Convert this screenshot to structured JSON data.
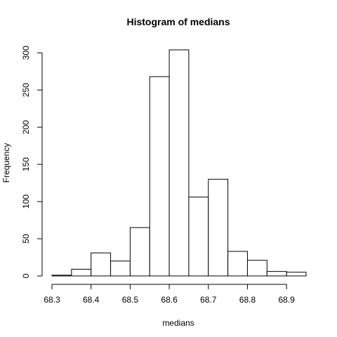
{
  "chart_data": {
    "type": "histogram",
    "title": "Histogram of medians",
    "xlabel": "medians",
    "ylabel": "Frequency",
    "bins": [
      {
        "x0": 68.3,
        "x1": 68.35,
        "count": 1
      },
      {
        "x0": 68.35,
        "x1": 68.4,
        "count": 9
      },
      {
        "x0": 68.4,
        "x1": 68.45,
        "count": 31
      },
      {
        "x0": 68.45,
        "x1": 68.5,
        "count": 20
      },
      {
        "x0": 68.5,
        "x1": 68.55,
        "count": 65
      },
      {
        "x0": 68.55,
        "x1": 68.6,
        "count": 268
      },
      {
        "x0": 68.6,
        "x1": 68.65,
        "count": 304
      },
      {
        "x0": 68.65,
        "x1": 68.7,
        "count": 106
      },
      {
        "x0": 68.7,
        "x1": 68.75,
        "count": 130
      },
      {
        "x0": 68.75,
        "x1": 68.8,
        "count": 33
      },
      {
        "x0": 68.8,
        "x1": 68.85,
        "count": 21
      },
      {
        "x0": 68.85,
        "x1": 68.9,
        "count": 6
      },
      {
        "x0": 68.9,
        "x1": 68.95,
        "count": 5
      }
    ],
    "xticks": [
      68.3,
      68.4,
      68.5,
      68.6,
      68.7,
      68.8,
      68.9
    ],
    "xtick_labels": [
      "68.3",
      "68.4",
      "68.5",
      "68.6",
      "68.7",
      "68.8",
      "68.9"
    ],
    "yticks": [
      0,
      50,
      100,
      150,
      200,
      250,
      300
    ],
    "ytick_labels": [
      "0",
      "50",
      "100",
      "150",
      "200",
      "250",
      "300"
    ],
    "xlim": [
      68.3,
      68.95
    ],
    "ylim": [
      0,
      304
    ],
    "grid": false
  }
}
